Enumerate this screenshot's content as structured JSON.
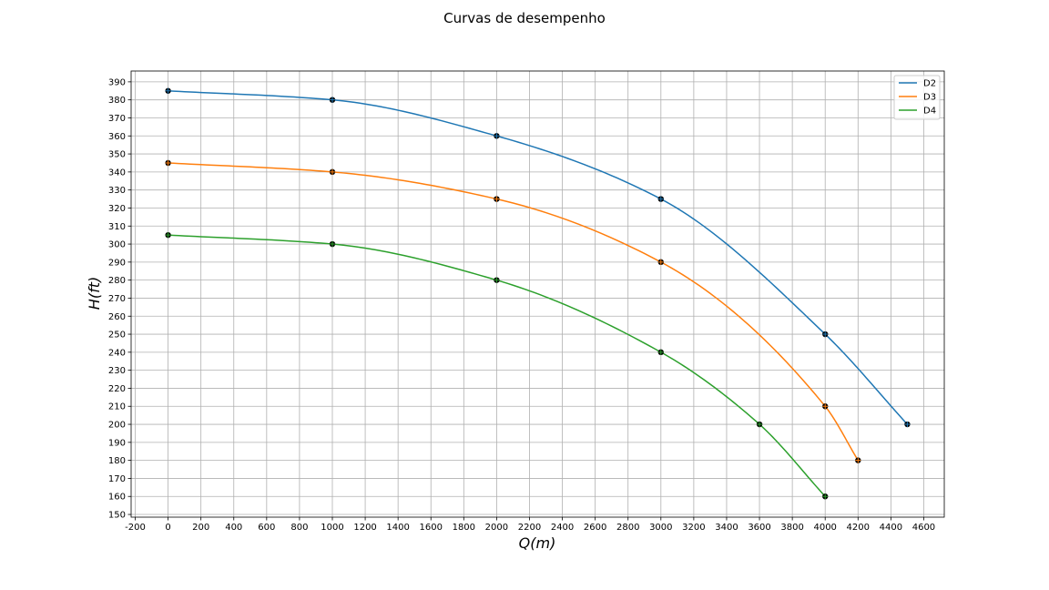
{
  "chart_data": {
    "type": "line",
    "title": "Curvas de desempenho",
    "xlabel": "Q(m)",
    "ylabel": "H(ft)",
    "xlim": [
      -225,
      4725
    ],
    "ylim": [
      148.5,
      396
    ],
    "xticks": [
      -200,
      0,
      200,
      400,
      600,
      800,
      1000,
      1200,
      1400,
      1600,
      1800,
      2000,
      2200,
      2400,
      2600,
      2800,
      3000,
      3200,
      3400,
      3600,
      3800,
      4000,
      4200,
      4400,
      4600
    ],
    "yticks": [
      150,
      160,
      170,
      180,
      190,
      200,
      210,
      220,
      230,
      240,
      250,
      260,
      270,
      280,
      290,
      300,
      310,
      320,
      330,
      340,
      350,
      360,
      370,
      380,
      390
    ],
    "grid": true,
    "legend_position": "top-right",
    "series": [
      {
        "name": "D2",
        "color": "#1f77b4",
        "points": [
          [
            0,
            385
          ],
          [
            1000,
            380
          ],
          [
            2000,
            360
          ],
          [
            3000,
            325
          ],
          [
            4000,
            250
          ],
          [
            4500,
            200
          ]
        ]
      },
      {
        "name": "D3",
        "color": "#ff7f0e",
        "points": [
          [
            0,
            345
          ],
          [
            1000,
            340
          ],
          [
            2000,
            325
          ],
          [
            3000,
            290
          ],
          [
            4000,
            210
          ],
          [
            4200,
            180
          ]
        ]
      },
      {
        "name": "D4",
        "color": "#2ca02c",
        "points": [
          [
            0,
            305
          ],
          [
            1000,
            300
          ],
          [
            2000,
            280
          ],
          [
            3000,
            240
          ],
          [
            3600,
            200
          ],
          [
            4000,
            160
          ]
        ]
      }
    ]
  }
}
